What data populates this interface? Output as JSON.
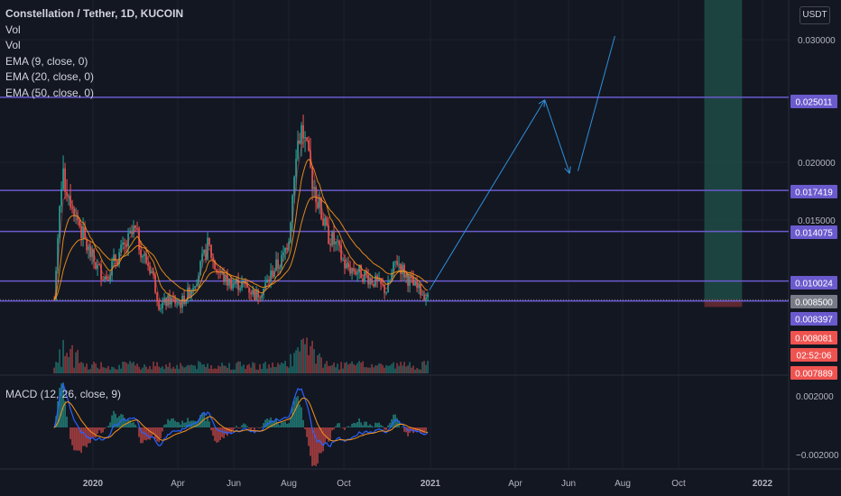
{
  "header": {
    "title": "Constellation / Tether, 1D, KUCOIN",
    "indicators": [
      "Vol",
      "Vol",
      "EMA (9, close, 0)",
      "EMA (20, close, 0)",
      "EMA (50, close, 0)"
    ],
    "unit": "USDT"
  },
  "macd": {
    "label": "MACD (12, 26, close, 9)"
  },
  "colors": {
    "background": "#131722",
    "level_line": "#6a5acd",
    "up": "#26a69a",
    "down": "#ef5350",
    "ema_orange": "#f7931a",
    "macd_blue": "#2962ff",
    "projection": "#2f8fd8",
    "highlight_zone": "#1f4b45"
  },
  "chart_data": {
    "type": "line",
    "title": "Constellation / Tether, 1D, KUCOIN",
    "x_ticks": [
      "2020",
      "Apr",
      "Jun",
      "Aug",
      "Oct",
      "2021",
      "Apr",
      "Jun",
      "Aug",
      "Oct",
      "2022"
    ],
    "y_ticks": [
      "0.030000",
      "0.025000",
      "0.020000",
      "0.015000",
      "0.010000"
    ],
    "horizontal_levels": [
      0.025011,
      0.017419,
      0.014075,
      0.010024,
      0.008397
    ],
    "price_tags": [
      {
        "label": "0.025011",
        "color": "#6a5acd"
      },
      {
        "label": "0.017419",
        "color": "#6a5acd"
      },
      {
        "label": "0.014075",
        "color": "#6a5acd"
      },
      {
        "label": "0.010024",
        "color": "#6a5acd"
      },
      {
        "label": "0.008500",
        "color": "#787b86"
      },
      {
        "label": "0.008397",
        "color": "#6a5acd"
      },
      {
        "label": "0.008081",
        "color": "#ef5350"
      },
      {
        "label": "02:52:06",
        "color": "#ef5350"
      },
      {
        "label": "0.007889",
        "color": "#ef5350"
      }
    ],
    "macd_ticks": [
      "0.002000",
      "−0.002000"
    ],
    "price_path": [
      [
        "2019-11-20",
        0.0085
      ],
      [
        "2019-11-28",
        0.0185
      ],
      [
        "2019-12-05",
        0.0175
      ],
      [
        "2019-12-15",
        0.0152
      ],
      [
        "2019-12-25",
        0.0128
      ],
      [
        "2020-01-05",
        0.0112
      ],
      [
        "2020-01-15",
        0.0103
      ],
      [
        "2020-01-25",
        0.0118
      ],
      [
        "2020-02-05",
        0.0128
      ],
      [
        "2020-02-15",
        0.0142
      ],
      [
        "2020-02-25",
        0.012
      ],
      [
        "2020-03-05",
        0.0108
      ],
      [
        "2020-03-13",
        0.008
      ],
      [
        "2020-03-25",
        0.0085
      ],
      [
        "2020-04-05",
        0.0082
      ],
      [
        "2020-04-15",
        0.0092
      ],
      [
        "2020-04-25",
        0.0108
      ],
      [
        "2020-05-05",
        0.013
      ],
      [
        "2020-05-12",
        0.0112
      ],
      [
        "2020-05-25",
        0.01
      ],
      [
        "2020-06-05",
        0.0098
      ],
      [
        "2020-06-15",
        0.0097
      ],
      [
        "2020-06-25",
        0.0088
      ],
      [
        "2020-07-05",
        0.0095
      ],
      [
        "2020-07-15",
        0.011
      ],
      [
        "2020-07-25",
        0.0118
      ],
      [
        "2020-08-01",
        0.014
      ],
      [
        "2020-08-08",
        0.021
      ],
      [
        "2020-08-15",
        0.0225
      ],
      [
        "2020-08-22",
        0.0195
      ],
      [
        "2020-09-01",
        0.0165
      ],
      [
        "2020-09-10",
        0.014
      ],
      [
        "2020-09-20",
        0.013
      ],
      [
        "2020-10-01",
        0.0112
      ],
      [
        "2020-10-15",
        0.0108
      ],
      [
        "2020-11-01",
        0.01
      ],
      [
        "2020-11-15",
        0.0092
      ],
      [
        "2020-11-25",
        0.0118
      ],
      [
        "2020-12-05",
        0.0105
      ],
      [
        "2020-12-15",
        0.0095
      ],
      [
        "2020-12-25",
        0.009
      ],
      [
        "2020-12-31",
        0.0085
      ]
    ],
    "projection_path": [
      [
        "2020-12-31",
        0.0093
      ],
      [
        "2021-05-05",
        0.0248
      ],
      [
        "2021-06-01",
        0.0188
      ],
      [
        "2021-06-10",
        0.019
      ],
      [
        "2021-07-20",
        0.03
      ]
    ],
    "highlight_zone": {
      "x_start": "2021-10-25",
      "x_end": "2021-12-05",
      "y_min": 0.0085,
      "y_max": 0.0335
    }
  }
}
